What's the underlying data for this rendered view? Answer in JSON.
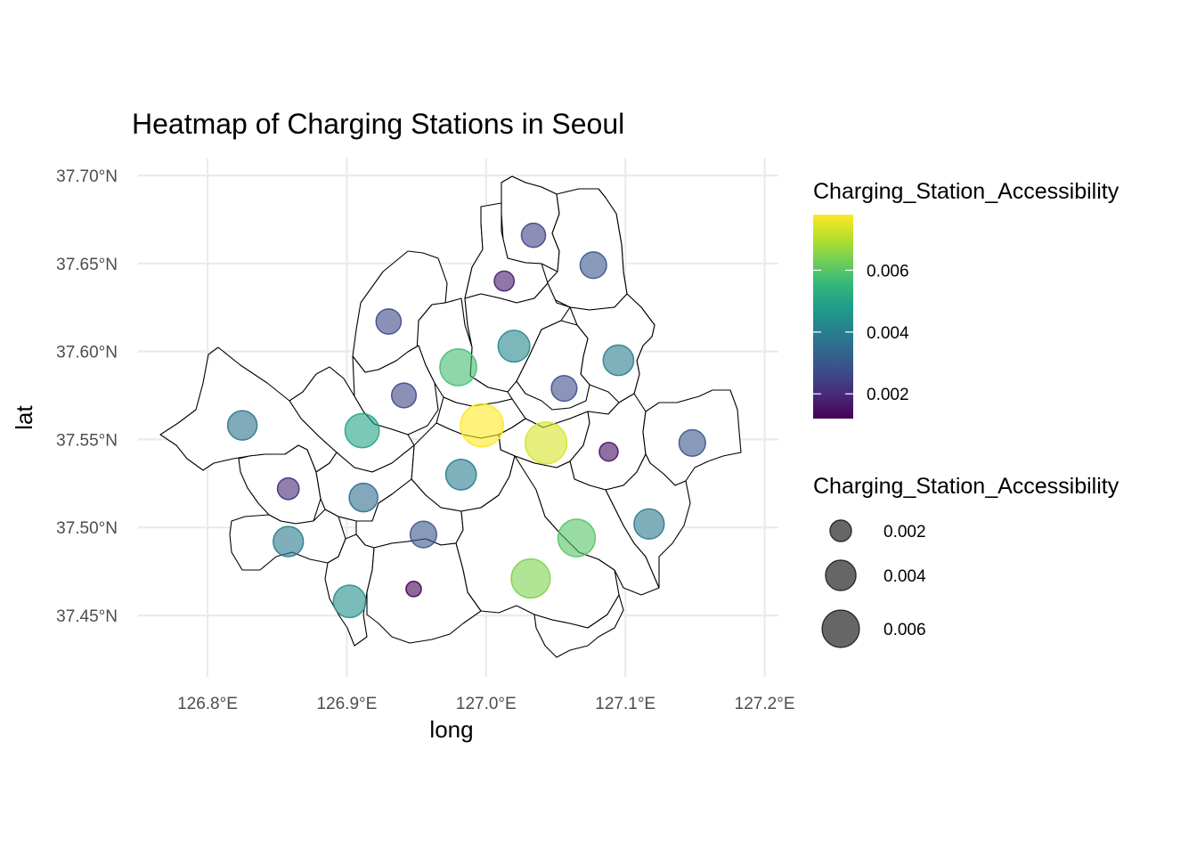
{
  "chart_data": {
    "type": "scatter",
    "title": "Heatmap of Charging Stations in Seoul",
    "xlabel": "long",
    "ylabel": "lat",
    "xlim": [
      126.75,
      127.21
    ],
    "ylim": [
      37.415,
      37.71
    ],
    "x_ticks": [
      {
        "value": 126.8,
        "label": "126.8°E"
      },
      {
        "value": 126.9,
        "label": "126.9°E"
      },
      {
        "value": 127.0,
        "label": "127.0°E"
      },
      {
        "value": 127.1,
        "label": "127.1°E"
      },
      {
        "value": 127.2,
        "label": "127.2°E"
      }
    ],
    "y_ticks": [
      {
        "value": 37.45,
        "label": "37.45°N"
      },
      {
        "value": 37.5,
        "label": "37.50°N"
      },
      {
        "value": 37.55,
        "label": "37.55°N"
      },
      {
        "value": 37.6,
        "label": "37.60°N"
      },
      {
        "value": 37.65,
        "label": "37.65°N"
      },
      {
        "value": 37.7,
        "label": "37.70°N"
      }
    ],
    "grid": true,
    "points": [
      {
        "long": 127.034,
        "lat": 37.666,
        "value": 0.0025
      },
      {
        "long": 127.077,
        "lat": 37.649,
        "value": 0.003
      },
      {
        "long": 127.013,
        "lat": 37.64,
        "value": 0.0017
      },
      {
        "long": 126.93,
        "lat": 37.617,
        "value": 0.0027
      },
      {
        "long": 127.02,
        "lat": 37.603,
        "value": 0.0043
      },
      {
        "long": 126.98,
        "lat": 37.591,
        "value": 0.0058
      },
      {
        "long": 127.095,
        "lat": 37.595,
        "value": 0.004
      },
      {
        "long": 127.056,
        "lat": 37.579,
        "value": 0.0028
      },
      {
        "long": 126.941,
        "lat": 37.575,
        "value": 0.0026
      },
      {
        "long": 126.997,
        "lat": 37.558,
        "value": 0.0079
      },
      {
        "long": 127.043,
        "lat": 37.548,
        "value": 0.0074
      },
      {
        "long": 126.825,
        "lat": 37.558,
        "value": 0.0037
      },
      {
        "long": 126.911,
        "lat": 37.555,
        "value": 0.005
      },
      {
        "long": 127.088,
        "lat": 37.543,
        "value": 0.0015
      },
      {
        "long": 127.148,
        "lat": 37.548,
        "value": 0.003
      },
      {
        "long": 126.858,
        "lat": 37.522,
        "value": 0.002
      },
      {
        "long": 126.912,
        "lat": 37.517,
        "value": 0.0035
      },
      {
        "long": 126.982,
        "lat": 37.53,
        "value": 0.004
      },
      {
        "long": 126.955,
        "lat": 37.496,
        "value": 0.003
      },
      {
        "long": 127.117,
        "lat": 37.502,
        "value": 0.0039
      },
      {
        "long": 127.065,
        "lat": 37.494,
        "value": 0.006
      },
      {
        "long": 126.858,
        "lat": 37.492,
        "value": 0.0039
      },
      {
        "long": 127.032,
        "lat": 37.471,
        "value": 0.0065
      },
      {
        "long": 126.902,
        "lat": 37.458,
        "value": 0.0045
      },
      {
        "long": 126.948,
        "lat": 37.465,
        "value": 0.001
      }
    ],
    "color_legend": {
      "title": "Charging_Station_Accessibility",
      "range": [
        0.0012,
        0.0078
      ],
      "breaks": [
        {
          "value": 0.002,
          "label": "0.002"
        },
        {
          "value": 0.004,
          "label": "0.004"
        },
        {
          "value": 0.006,
          "label": "0.006"
        }
      ]
    },
    "size_legend": {
      "title": "Charging_Station_Accessibility",
      "breaks": [
        {
          "value": 0.002,
          "label": "0.002"
        },
        {
          "value": 0.004,
          "label": "0.004"
        },
        {
          "value": 0.006,
          "label": "0.006"
        }
      ]
    },
    "palette": [
      "#440154",
      "#482878",
      "#3e4989",
      "#31688e",
      "#26828e",
      "#1f9e89",
      "#35b779",
      "#6ece58",
      "#b5de2b",
      "#fde725"
    ],
    "legend_position": "right",
    "point_alpha": 0.6
  }
}
